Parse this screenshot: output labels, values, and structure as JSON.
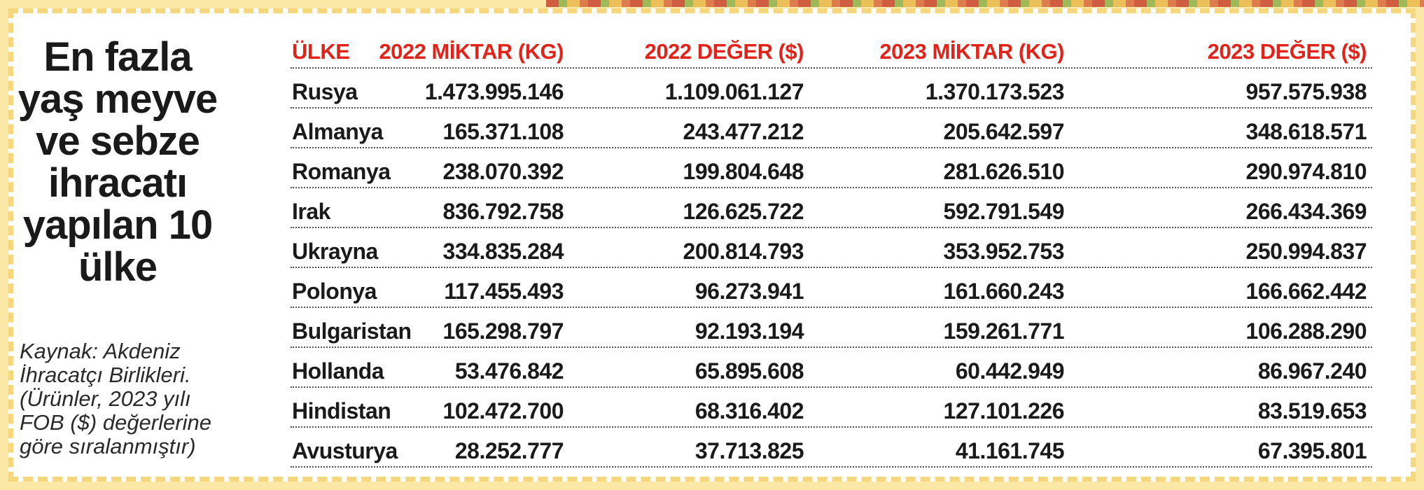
{
  "title": "En fazla yaş meyve ve sebze ihracatı yapılan 10 ülke",
  "source": "Kaynak: Akdeniz\nİhracatçı Birlikleri.\n(Ürünler, 2023 yılı\nFOB ($) değerlerine\ngöre sıralanmıştır)",
  "colors": {
    "header": "#e2231a",
    "text": "#1a1a1a",
    "border": "#f7d77e"
  },
  "chart_data": {
    "type": "table",
    "title": "En fazla yaş meyve ve sebze ihracatı yapılan 10 ülke",
    "columns": [
      "ÜLKE",
      "2022 MİKTAR (KG)",
      "2022 DEĞER ($)",
      "2023 MİKTAR (KG)",
      "2023 DEĞER ($)"
    ],
    "rows": [
      [
        "Rusya",
        "1.473.995.146",
        "1.109.061.127",
        "1.370.173.523",
        "957.575.938"
      ],
      [
        "Almanya",
        "165.371.108",
        "243.477.212",
        "205.642.597",
        "348.618.571"
      ],
      [
        "Romanya",
        "238.070.392",
        "199.804.648",
        "281.626.510",
        "290.974.810"
      ],
      [
        "Irak",
        "836.792.758",
        "126.625.722",
        "592.791.549",
        "266.434.369"
      ],
      [
        "Ukrayna",
        "334.835.284",
        "200.814.793",
        "353.952.753",
        "250.994.837"
      ],
      [
        "Polonya",
        "117.455.493",
        "96.273.941",
        "161.660.243",
        "166.662.442"
      ],
      [
        "Bulgaristan",
        "165.298.797",
        "92.193.194",
        "159.261.771",
        "106.288.290"
      ],
      [
        "Hollanda",
        "53.476.842",
        "65.895.608",
        "60.442.949",
        "86.967.240"
      ],
      [
        "Hindistan",
        "102.472.700",
        "68.316.402",
        "127.101.226",
        "83.519.653"
      ],
      [
        "Avusturya",
        "28.252.777",
        "37.713.825",
        "41.161.745",
        "67.395.801"
      ]
    ]
  }
}
